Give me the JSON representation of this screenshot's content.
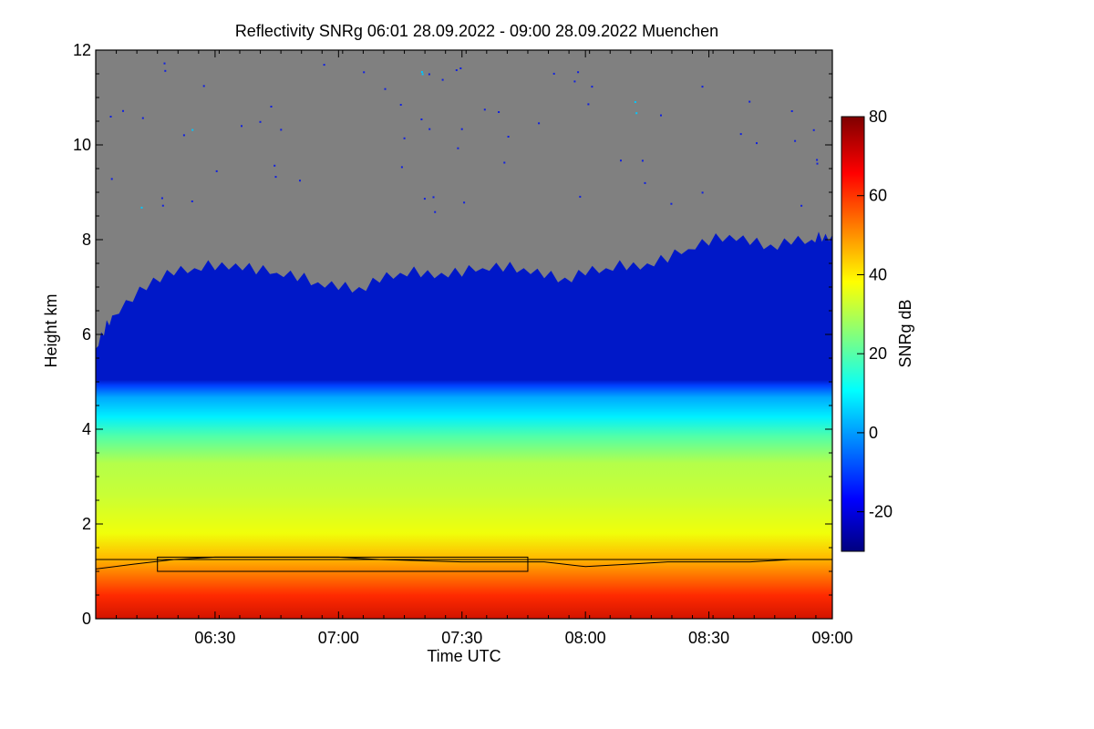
{
  "chart_data": {
    "type": "heatmap",
    "title": "Reflectivity SNRg   06:01 28.09.2022 - 09:00 28.09.2022 Muenchen",
    "xlabel": "Time UTC",
    "ylabel": "Height km",
    "xlim": [
      "06:01",
      "09:00"
    ],
    "ylim": [
      0,
      12
    ],
    "x_ticks": [
      "06:30",
      "07:00",
      "07:30",
      "08:00",
      "08:30",
      "09:00"
    ],
    "y_ticks": [
      "0",
      "2",
      "4",
      "6",
      "8",
      "10",
      "12"
    ],
    "colorbar": {
      "label": "SNRg dB",
      "range": [
        -30,
        80
      ],
      "ticks": [
        "-20",
        "0",
        "20",
        "40",
        "60",
        "80"
      ],
      "colormap": "jet"
    },
    "no_signal_color": "#808080",
    "echo_top_km": [
      [
        "06:01",
        5.7
      ],
      [
        "06:05",
        6.4
      ],
      [
        "06:15",
        7.2
      ],
      [
        "06:25",
        7.4
      ],
      [
        "06:35",
        7.5
      ],
      [
        "06:45",
        7.3
      ],
      [
        "06:55",
        7.1
      ],
      [
        "07:05",
        7.0
      ],
      [
        "07:15",
        7.3
      ],
      [
        "07:25",
        7.3
      ],
      [
        "07:35",
        7.4
      ],
      [
        "07:45",
        7.4
      ],
      [
        "07:55",
        7.2
      ],
      [
        "08:05",
        7.4
      ],
      [
        "08:15",
        7.5
      ],
      [
        "08:25",
        7.8
      ],
      [
        "08:35",
        8.1
      ],
      [
        "08:45",
        7.9
      ],
      [
        "08:55",
        8.0
      ],
      [
        "09:00",
        8.1
      ]
    ],
    "boundary_layer_height_km": [
      [
        "06:01",
        1.05
      ],
      [
        "06:10",
        1.15
      ],
      [
        "06:20",
        1.25
      ],
      [
        "06:30",
        1.3
      ],
      [
        "06:40",
        1.3
      ],
      [
        "06:50",
        1.3
      ],
      [
        "07:00",
        1.3
      ],
      [
        "07:10",
        1.25
      ],
      [
        "07:30",
        1.2
      ],
      [
        "07:50",
        1.2
      ],
      [
        "08:00",
        1.1
      ],
      [
        "08:10",
        1.15
      ],
      [
        "08:20",
        1.2
      ],
      [
        "08:30",
        1.2
      ],
      [
        "08:40",
        1.2
      ],
      [
        "08:50",
        1.25
      ],
      [
        "09:00",
        1.25
      ]
    ],
    "reference_line_km": 1.25,
    "box_outline": {
      "x": [
        "06:16",
        "07:46"
      ],
      "y_km": [
        1.0,
        1.3
      ]
    }
  }
}
